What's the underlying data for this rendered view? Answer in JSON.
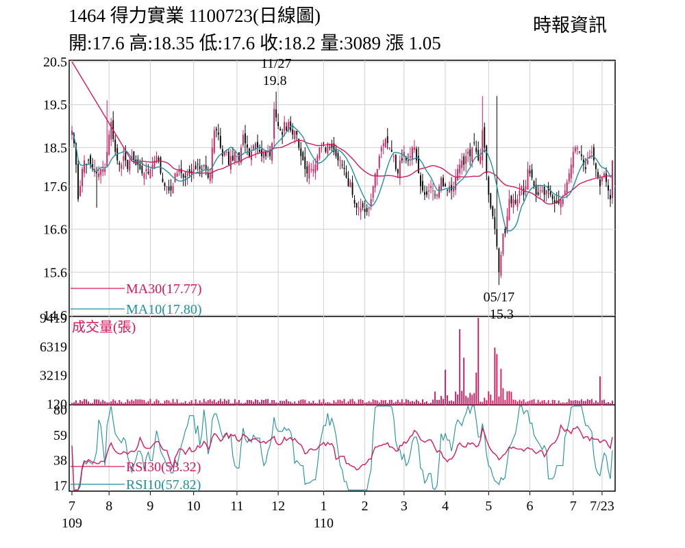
{
  "header": {
    "title": "1464  得力實業 1100723(日線圖)",
    "source": "時報資訊",
    "quote": "開:17.6 高:18.35 低:17.6 收:18.2 量:3089 漲 1.05"
  },
  "colors": {
    "up": "#d6175b",
    "down": "#000000",
    "ma30": "#d6175b",
    "ma10": "#1e8ea0",
    "rsi30": "#d6175b",
    "rsi10": "#1e8ea0",
    "volume": "#d6175b"
  },
  "chart_data": [
    {
      "type": "candlestick",
      "title": "1464 得力實業 1100723(日線圖)",
      "ylim": [
        14.6,
        20.5
      ],
      "y_ticks": [
        "20.5",
        "19.5",
        "18.5",
        "17.6",
        "16.6",
        "15.6",
        "14.6"
      ],
      "y_tick_values": [
        20.5,
        19.5,
        18.5,
        17.6,
        16.6,
        15.6,
        14.6
      ],
      "legend": [
        {
          "name": "MA30(17.77)",
          "color": "#d6175b"
        },
        {
          "name": "MA10(17.80)",
          "color": "#1e8ea0"
        }
      ],
      "annotations": [
        {
          "date": "11/27",
          "value": "19.8",
          "text_date": "11/27",
          "text_value": "19.8"
        },
        {
          "date": "05/17",
          "value": "15.3",
          "text_date": "05/17",
          "text_value": "15.3"
        }
      ],
      "months": [
        {
          "label": "7",
          "sub": "109"
        },
        {
          "label": "8",
          "sub": ""
        },
        {
          "label": "9",
          "sub": ""
        },
        {
          "label": "10",
          "sub": ""
        },
        {
          "label": "11",
          "sub": ""
        },
        {
          "label": "12",
          "sub": ""
        },
        {
          "label": "1",
          "sub": "110"
        },
        {
          "label": "2",
          "sub": ""
        },
        {
          "label": "3",
          "sub": ""
        },
        {
          "label": "4",
          "sub": ""
        },
        {
          "label": "5",
          "sub": ""
        },
        {
          "label": "6",
          "sub": ""
        },
        {
          "label": "7",
          "sub": ""
        },
        {
          "label": "7/23",
          "sub": ""
        }
      ],
      "month_index": [
        0,
        18,
        38,
        59,
        80,
        100,
        122,
        142,
        161,
        181,
        202,
        222,
        243,
        257
      ],
      "close_path": [
        18.9,
        18.6,
        18.1,
        17.3,
        17.6,
        18.0,
        18.2,
        18.1,
        18.2,
        18.1,
        18.0,
        18.0,
        17.9,
        17.9,
        18.0,
        18.0,
        18.0,
        18.4,
        18.8,
        19.1,
        18.7,
        18.4,
        18.2,
        18.1,
        18.1,
        18.3,
        18.2,
        18.0,
        18.2,
        18.3,
        18.2,
        18.1,
        18.1,
        18.0,
        17.9,
        17.9,
        18.0,
        17.9,
        18.0,
        18.1,
        18.2,
        18.3,
        18.2,
        17.9,
        17.7,
        17.6,
        17.6,
        17.5,
        17.5,
        17.6,
        17.9,
        17.9,
        18.0,
        17.9,
        17.8,
        17.8,
        17.9,
        17.9,
        17.9,
        18.0,
        18.0,
        18.1,
        18.0,
        18.0,
        18.1,
        18.0,
        17.8,
        17.9,
        18.5,
        18.9,
        18.9,
        18.8,
        18.5,
        18.3,
        18.4,
        18.4,
        18.1,
        18.3,
        18.2,
        18.4,
        18.3,
        18.2,
        18.5,
        18.8,
        18.6,
        18.5,
        18.3,
        18.4,
        18.5,
        18.6,
        18.5,
        18.4,
        18.3,
        18.4,
        18.3,
        18.4,
        18.3,
        18.6,
        19.4,
        19.2,
        19.0,
        18.9,
        18.8,
        19.1,
        18.9,
        19.1,
        18.9,
        18.8,
        18.9,
        18.8,
        18.5,
        18.3,
        18.2,
        18.0,
        17.9,
        18.1,
        18.0,
        18.0,
        18.1,
        18.3,
        18.5,
        18.5,
        18.6,
        18.4,
        18.6,
        18.5,
        18.5,
        18.4,
        18.3,
        18.2,
        18.2,
        18.1,
        18.0,
        17.8,
        17.6,
        17.7,
        17.4,
        17.2,
        17.1,
        17.1,
        17.1,
        17.1,
        17.0,
        17.0,
        17.1,
        17.3,
        17.6,
        17.9,
        18.0,
        18.3,
        18.5,
        18.6,
        18.7,
        18.6,
        18.5,
        18.4,
        18.3,
        18.0,
        17.9,
        18.2,
        18.2,
        18.4,
        18.2,
        18.2,
        18.3,
        18.5,
        18.5,
        18.2,
        17.9,
        17.6,
        17.5,
        17.4,
        17.4,
        17.5,
        17.6,
        17.5,
        17.4,
        17.4,
        17.6,
        17.8,
        17.6,
        17.6,
        17.5,
        17.6,
        17.5,
        17.6,
        17.8,
        18.0,
        18.1,
        18.2,
        18.1,
        18.3,
        18.4,
        18.3,
        18.5,
        18.6,
        18.4,
        18.2,
        18.3,
        18.9,
        18.5,
        17.9,
        17.4,
        17.1,
        16.9,
        16.6,
        16.2,
        15.6,
        16.0,
        16.5,
        16.5,
        16.9,
        17.3,
        17.2,
        17.3,
        17.2,
        17.3,
        17.5,
        17.6,
        17.4,
        17.6,
        18.0,
        17.9,
        17.8,
        17.6,
        17.4,
        17.4,
        17.5,
        17.5,
        17.4,
        17.5,
        17.5,
        17.4,
        17.3,
        17.2,
        17.2,
        17.2,
        17.3,
        17.3,
        17.5,
        17.7,
        17.9,
        18.1,
        18.4,
        18.5,
        18.5,
        18.4,
        18.3,
        18.1,
        18.0,
        18.2,
        18.3,
        18.4,
        18.2,
        18.0,
        17.8,
        17.6,
        17.8,
        17.9,
        17.7,
        17.5,
        17.3,
        18.2
      ]
    },
    {
      "type": "bar",
      "title": "成交量(張)",
      "y_ticks": [
        "9419",
        "6319",
        "3219",
        "120"
      ],
      "y_tick_values": [
        9419,
        6319,
        3219,
        120
      ],
      "spikes": [
        {
          "index": 188,
          "value": 8200
        },
        {
          "index": 197,
          "value": 9419
        },
        {
          "index": 205,
          "value": 6200
        },
        {
          "index": 196,
          "value": 3500
        },
        {
          "index": 190,
          "value": 5100
        },
        {
          "index": 181,
          "value": 3800
        },
        {
          "index": 206,
          "value": 5500
        },
        {
          "index": 208,
          "value": 3900
        },
        {
          "index": 256,
          "value": 3089
        }
      ]
    },
    {
      "type": "line",
      "title": "RSI",
      "y_ticks": [
        "80",
        "59",
        "38",
        "17"
      ],
      "y_tick_values": [
        80,
        59,
        38,
        17
      ],
      "legend": [
        {
          "name": "RSI30(53.32)",
          "color": "#d6175b"
        },
        {
          "name": "RSI10(57.82)",
          "color": "#1e8ea0"
        }
      ]
    }
  ]
}
